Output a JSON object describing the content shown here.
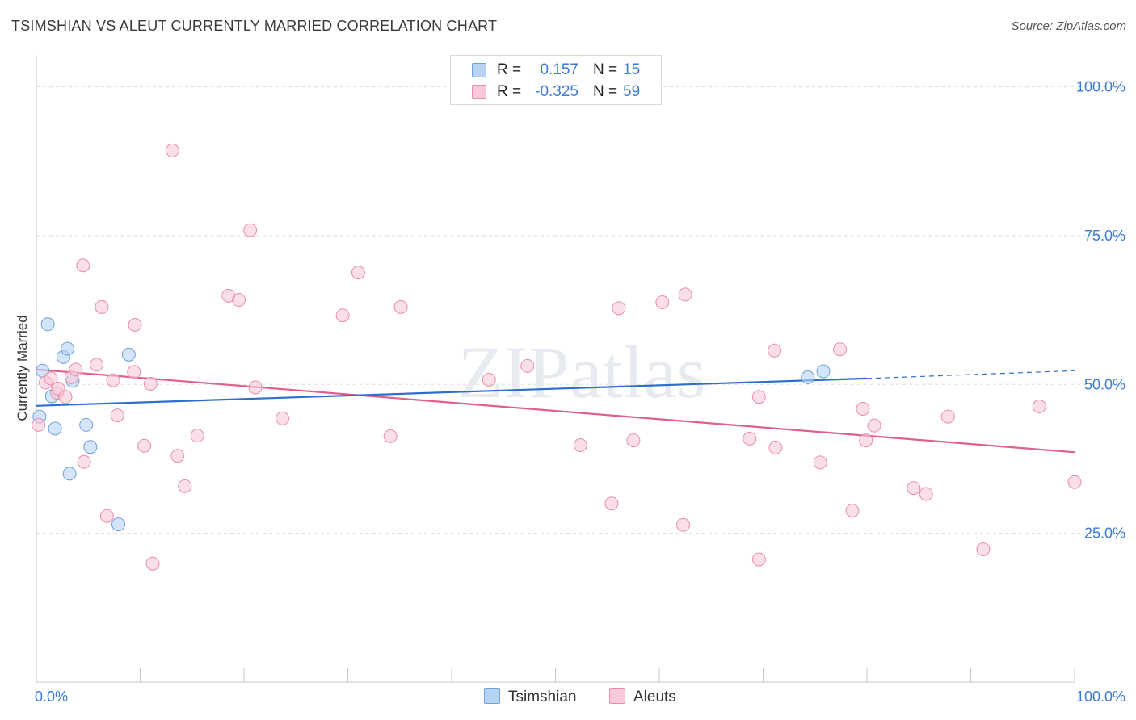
{
  "title": "TSIMSHIAN VS ALEUT CURRENTLY MARRIED CORRELATION CHART",
  "source": "Source: ZipAtlas.com",
  "watermark": "ZIPatlas",
  "colors": {
    "tsimshian_fill": "#b8d4f5",
    "tsimshian_stroke": "#6f9fd8",
    "tsimshian_line": "#2e6fcc",
    "aleuts_fill": "#f9c9d8",
    "aleuts_stroke": "#e88eab",
    "aleuts_line": "#e0608a",
    "axis_text": "#3a7bd5",
    "grid": "#dddddd"
  },
  "legend": {
    "tsimshian": {
      "r_label": "R =",
      "r_value": "0.157",
      "n_label": "N =",
      "n_value": "15"
    },
    "aleuts": {
      "r_label": "R =",
      "r_value": "-0.325",
      "n_label": "N =",
      "n_value": "59"
    }
  },
  "bottom_legend": {
    "tsimshian": "Tsimshian",
    "aleuts": "Aleuts"
  },
  "chart_data": {
    "type": "scatter",
    "title": "TSIMSHIAN VS ALEUT CURRENTLY MARRIED CORRELATION CHART",
    "xlabel": "",
    "ylabel": "Currently Married",
    "xlim": [
      0,
      100
    ],
    "ylim": [
      0,
      104
    ],
    "x_tick_labels": [
      "0.0%",
      "100.0%"
    ],
    "y_ticks": [
      25,
      50,
      75,
      100
    ],
    "y_tick_labels": [
      "25.0%",
      "50.0%",
      "75.0%",
      "100.0%"
    ],
    "grid": true,
    "series": [
      {
        "name": "Tsimshian",
        "points": [
          [
            0.3,
            44.6
          ],
          [
            0.6,
            52.3
          ],
          [
            1.1,
            60.1
          ],
          [
            1.5,
            48.0
          ],
          [
            1.8,
            42.6
          ],
          [
            2.6,
            54.6
          ],
          [
            3.0,
            56.0
          ],
          [
            3.5,
            50.6
          ],
          [
            4.8,
            43.2
          ],
          [
            5.2,
            39.5
          ],
          [
            3.2,
            35.0
          ],
          [
            7.9,
            26.5
          ],
          [
            8.9,
            55.0
          ],
          [
            74.3,
            51.2
          ],
          [
            75.8,
            52.2
          ]
        ],
        "trend": {
          "x0": 0,
          "y0": 46.4,
          "x1": 80,
          "y1": 51.0,
          "dashed_to_x": 100,
          "dashed_to_y": 52.3
        }
      },
      {
        "name": "Aleuts",
        "points": [
          [
            0.2,
            43.2
          ],
          [
            0.9,
            50.3
          ],
          [
            1.4,
            51.0
          ],
          [
            2.0,
            48.6
          ],
          [
            2.1,
            49.3
          ],
          [
            2.8,
            47.9
          ],
          [
            3.4,
            51.2
          ],
          [
            3.8,
            52.5
          ],
          [
            4.6,
            37.0
          ],
          [
            4.5,
            70.0
          ],
          [
            5.8,
            53.3
          ],
          [
            6.3,
            63.0
          ],
          [
            6.8,
            27.9
          ],
          [
            7.4,
            50.7
          ],
          [
            7.8,
            44.8
          ],
          [
            9.4,
            52.1
          ],
          [
            9.5,
            60.0
          ],
          [
            10.4,
            39.7
          ],
          [
            11.0,
            50.1
          ],
          [
            11.2,
            19.9
          ],
          [
            13.1,
            89.3
          ],
          [
            13.6,
            38.0
          ],
          [
            14.3,
            32.9
          ],
          [
            15.5,
            41.4
          ],
          [
            18.5,
            64.9
          ],
          [
            19.5,
            64.2
          ],
          [
            20.6,
            75.9
          ],
          [
            21.1,
            49.5
          ],
          [
            23.7,
            44.3
          ],
          [
            29.5,
            61.6
          ],
          [
            31.0,
            68.8
          ],
          [
            34.1,
            41.3
          ],
          [
            35.1,
            63.0
          ],
          [
            43.6,
            50.8
          ],
          [
            47.3,
            53.1
          ],
          [
            52.4,
            39.8
          ],
          [
            55.4,
            30.0
          ],
          [
            56.1,
            62.8
          ],
          [
            57.5,
            40.6
          ],
          [
            60.3,
            63.8
          ],
          [
            62.3,
            26.4
          ],
          [
            62.5,
            65.1
          ],
          [
            68.7,
            40.9
          ],
          [
            69.6,
            20.6
          ],
          [
            69.6,
            47.9
          ],
          [
            71.1,
            55.7
          ],
          [
            71.2,
            39.4
          ],
          [
            75.5,
            36.9
          ],
          [
            77.4,
            55.9
          ],
          [
            78.6,
            28.8
          ],
          [
            79.6,
            45.9
          ],
          [
            79.9,
            40.6
          ],
          [
            80.7,
            43.1
          ],
          [
            84.5,
            32.6
          ],
          [
            85.7,
            31.6
          ],
          [
            87.8,
            44.6
          ],
          [
            91.2,
            22.3
          ],
          [
            96.6,
            46.3
          ],
          [
            100.0,
            33.6
          ]
        ],
        "trend": {
          "x0": 0,
          "y0": 52.5,
          "x1": 100,
          "y1": 38.6
        }
      }
    ]
  }
}
